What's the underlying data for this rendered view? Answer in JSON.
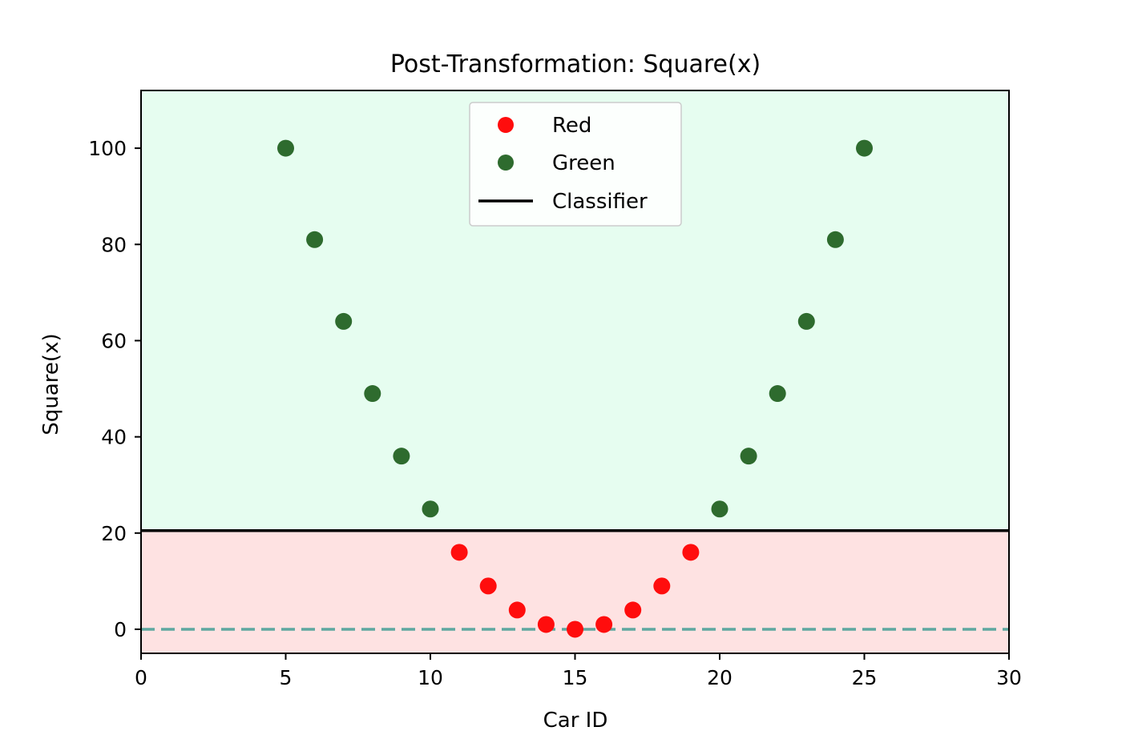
{
  "chart_data": {
    "type": "scatter",
    "title": "Post-Transformation: Square(x)",
    "xlabel": "Car ID",
    "ylabel": "Square(x)",
    "xlim": [
      0,
      30
    ],
    "ylim": [
      -5,
      112
    ],
    "xticks": [
      0,
      5,
      10,
      15,
      20,
      25,
      30
    ],
    "yticks": [
      0,
      20,
      40,
      60,
      80,
      100
    ],
    "grid": false,
    "legend_position": "top-center",
    "regions": [
      {
        "name": "green-region",
        "y_from": 20.5,
        "y_to": 112,
        "color": "#e6fdf0"
      },
      {
        "name": "red-region",
        "y_from": -5,
        "y_to": 20.5,
        "color": "#fee2e2"
      }
    ],
    "series": [
      {
        "name": "Red",
        "color": "#ff0d0d",
        "x": [
          11,
          12,
          13,
          14,
          15,
          16,
          17,
          18,
          19
        ],
        "y": [
          16,
          9,
          4,
          1,
          0,
          1,
          4,
          9,
          16
        ]
      },
      {
        "name": "Green",
        "color": "#2e6b2e",
        "x": [
          5,
          6,
          7,
          8,
          9,
          10,
          20,
          21,
          22,
          23,
          24,
          25
        ],
        "y": [
          100,
          81,
          64,
          49,
          36,
          25,
          25,
          36,
          49,
          64,
          81,
          100
        ]
      }
    ],
    "lines": [
      {
        "name": "Classifier",
        "y": 20.5,
        "color": "#000000",
        "style": "solid"
      },
      {
        "name": "baseline",
        "y": 0,
        "color": "#5fa8a0",
        "style": "dashed"
      }
    ],
    "legend": [
      "Red",
      "Green",
      "Classifier"
    ]
  }
}
